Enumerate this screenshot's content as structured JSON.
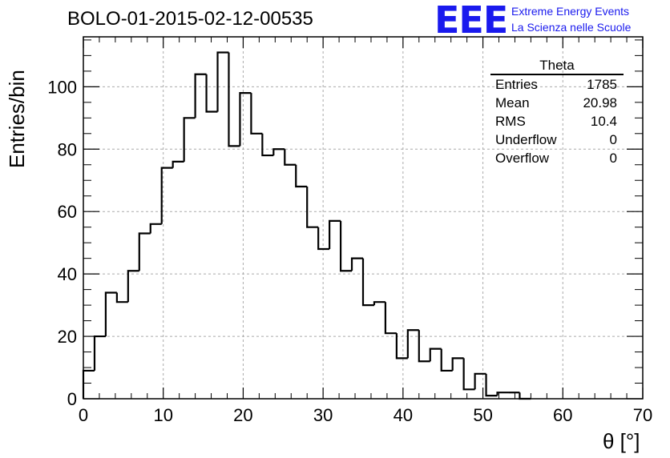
{
  "header": {
    "run_title": "BOLO-01-2015-02-12-00535",
    "logo_mark": "EEE",
    "logo_line1": "Extreme Energy Events",
    "logo_line2": "La Scienza nelle Scuole"
  },
  "stats_box": {
    "title": "Theta",
    "rows": [
      {
        "label": "Entries",
        "value": "1785"
      },
      {
        "label": "Mean",
        "value": "20.98"
      },
      {
        "label": "RMS",
        "value": "10.4"
      },
      {
        "label": "Underflow",
        "value": "0"
      },
      {
        "label": "Overflow",
        "value": "0"
      }
    ]
  },
  "chart_data": {
    "type": "bar",
    "style": "step-histogram",
    "title": "BOLO-01-2015-02-12-00535",
    "xlabel": "θ [°]",
    "ylabel": "Entries/bin",
    "xlim": [
      0,
      70
    ],
    "ylim": [
      0,
      116
    ],
    "xticks": [
      0,
      10,
      20,
      30,
      40,
      50,
      60,
      70
    ],
    "yticks": [
      0,
      20,
      40,
      60,
      80,
      100
    ],
    "grid": true,
    "bin_width": 1.4,
    "values": [
      9,
      20,
      34,
      31,
      41,
      53,
      56,
      74,
      76,
      90,
      104,
      92,
      111,
      81,
      98,
      85,
      78,
      80,
      75,
      68,
      55,
      48,
      57,
      41,
      45,
      30,
      31,
      21,
      13,
      22,
      12,
      16,
      9,
      13,
      3,
      8,
      1,
      2,
      2,
      0
    ]
  },
  "colors": {
    "line": "#000000",
    "grid": "#aaaaaa",
    "logo": "#1a1aee"
  }
}
